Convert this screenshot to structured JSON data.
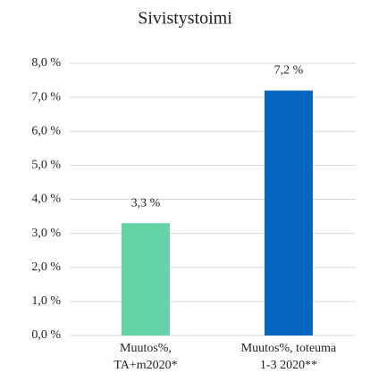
{
  "chart_data": {
    "type": "bar",
    "title": "Sivistystoimi",
    "categories": [
      "Muutos%,\nTA+m2020*",
      "Muutos%, toteuma\n1-3 2020**"
    ],
    "values": [
      3.3,
      7.2
    ],
    "value_labels": [
      "3,3 %",
      "7,2 %"
    ],
    "colors": [
      "#66d3a6",
      "#0565c0"
    ],
    "ylim": [
      0,
      8
    ],
    "yticks": [
      {
        "value": 0,
        "label": "0,0 %"
      },
      {
        "value": 1,
        "label": "1,0 %"
      },
      {
        "value": 2,
        "label": "2,0 %"
      },
      {
        "value": 3,
        "label": "3,0 %"
      },
      {
        "value": 4,
        "label": "4,0 %"
      },
      {
        "value": 5,
        "label": "5,0 %"
      },
      {
        "value": 6,
        "label": "6,0 %"
      },
      {
        "value": 7,
        "label": "7,0 %"
      },
      {
        "value": 8,
        "label": "8,0 %"
      }
    ],
    "grid": true
  }
}
